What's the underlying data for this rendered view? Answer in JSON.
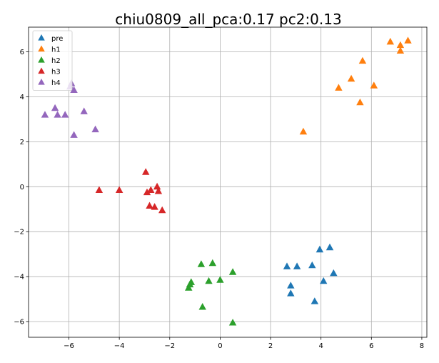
{
  "chart_data": {
    "type": "scatter",
    "title": "chiu0809_all_pca:0.17 pc2:0.13",
    "xlabel": "",
    "ylabel": "",
    "xlim": [
      -7.6,
      8.2
    ],
    "ylim": [
      -6.7,
      7.1
    ],
    "xticks": [
      -6,
      -4,
      -2,
      0,
      2,
      4,
      6,
      8
    ],
    "yticks": [
      -6,
      -4,
      -2,
      0,
      2,
      4,
      6
    ],
    "xtick_labels": [
      "−6",
      "−4",
      "−2",
      "0",
      "2",
      "4",
      "6",
      "8"
    ],
    "ytick_labels": [
      "−6",
      "−4",
      "−2",
      "0",
      "2",
      "4",
      "6"
    ],
    "grid": true,
    "legend_position": "top-left",
    "marker": "triangle-up",
    "series": [
      {
        "name": "pre",
        "color": "#1f77b4",
        "points": [
          [
            4.35,
            -2.7
          ],
          [
            3.95,
            -2.8
          ],
          [
            3.65,
            -3.5
          ],
          [
            4.5,
            -3.85
          ],
          [
            2.65,
            -3.55
          ],
          [
            3.05,
            -3.55
          ],
          [
            2.8,
            -4.4
          ],
          [
            4.1,
            -4.2
          ],
          [
            2.8,
            -4.75
          ],
          [
            3.75,
            -5.1
          ]
        ]
      },
      {
        "name": "h1",
        "color": "#ff7f0e",
        "points": [
          [
            7.45,
            6.5
          ],
          [
            6.75,
            6.45
          ],
          [
            7.15,
            6.3
          ],
          [
            7.15,
            6.05
          ],
          [
            5.65,
            5.6
          ],
          [
            5.2,
            4.8
          ],
          [
            4.7,
            4.4
          ],
          [
            6.1,
            4.5
          ],
          [
            5.55,
            3.75
          ],
          [
            3.3,
            2.45
          ]
        ]
      },
      {
        "name": "h2",
        "color": "#2ca02c",
        "points": [
          [
            -0.3,
            -3.4
          ],
          [
            -0.75,
            -3.45
          ],
          [
            0.5,
            -3.8
          ],
          [
            -1.15,
            -4.25
          ],
          [
            -1.2,
            -4.35
          ],
          [
            -0.45,
            -4.2
          ],
          [
            0.0,
            -4.15
          ],
          [
            -1.25,
            -4.5
          ],
          [
            -0.7,
            -5.35
          ],
          [
            0.5,
            -6.05
          ]
        ]
      },
      {
        "name": "h3",
        "color": "#d62728",
        "points": [
          [
            -2.95,
            0.65
          ],
          [
            -2.5,
            0.0
          ],
          [
            -2.9,
            -0.25
          ],
          [
            -2.75,
            -0.15
          ],
          [
            -2.45,
            -0.2
          ],
          [
            -4.8,
            -0.15
          ],
          [
            -4.0,
            -0.15
          ],
          [
            -2.8,
            -0.85
          ],
          [
            -2.6,
            -0.9
          ],
          [
            -2.3,
            -1.05
          ]
        ]
      },
      {
        "name": "h4",
        "color": "#9467bd",
        "points": [
          [
            -5.9,
            4.6
          ],
          [
            -5.95,
            4.45
          ],
          [
            -5.8,
            4.3
          ],
          [
            -6.55,
            3.5
          ],
          [
            -5.4,
            3.35
          ],
          [
            -6.95,
            3.2
          ],
          [
            -6.45,
            3.2
          ],
          [
            -6.15,
            3.2
          ],
          [
            -4.95,
            2.55
          ],
          [
            -5.8,
            2.3
          ]
        ]
      }
    ]
  }
}
